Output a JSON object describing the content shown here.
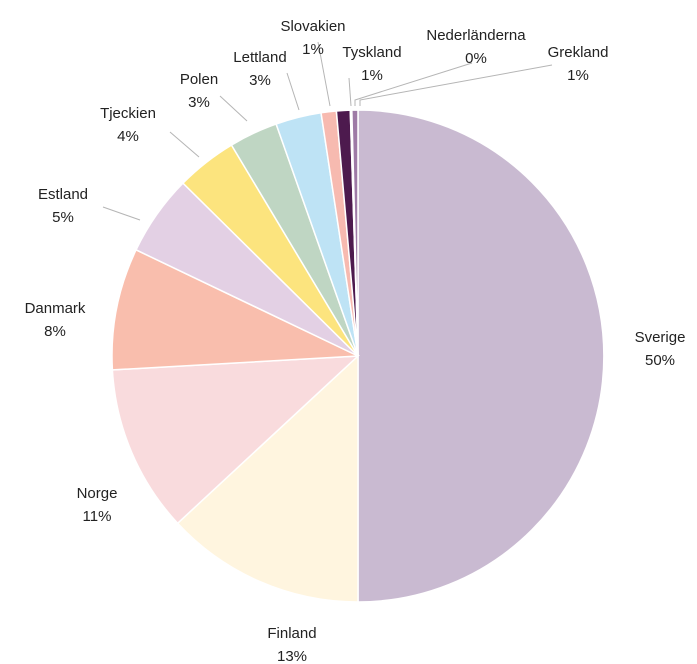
{
  "chart_data": {
    "type": "pie",
    "title": "",
    "start_angle_deg": 0,
    "direction": "clockwise",
    "slices": [
      {
        "name": "Sverige",
        "value": 50,
        "label": "50%",
        "color": "#C9BAD1"
      },
      {
        "name": "Finland",
        "value": 13,
        "label": "13%",
        "color": "#FFF5DF"
      },
      {
        "name": "Norge",
        "value": 11,
        "label": "11%",
        "color": "#F9DBDD"
      },
      {
        "name": "Danmark",
        "value": 8,
        "label": "8%",
        "color": "#F9BEAD"
      },
      {
        "name": "Estland",
        "value": 5,
        "label": "5%",
        "color": "#E3D0E4"
      },
      {
        "name": "Tjeckien",
        "value": 4,
        "label": "4%",
        "color": "#FCE47E"
      },
      {
        "name": "Polen",
        "value": 3,
        "label": "3%",
        "color": "#BFD6C3"
      },
      {
        "name": "Lettland",
        "value": 3,
        "label": "3%",
        "color": "#BEE3F5"
      },
      {
        "name": "Slovakien",
        "value": 1,
        "label": "1%",
        "color": "#F7BAB0"
      },
      {
        "name": "Tyskland",
        "value": 1,
        "label": "1%",
        "color": "#4D1A4E"
      },
      {
        "name": "Nederländerna",
        "value": 0,
        "label": "0%",
        "color": "#C7A3C5"
      },
      {
        "name": "Grekland",
        "value": 1,
        "label": "1%",
        "color": "#9E7AA6"
      }
    ]
  }
}
